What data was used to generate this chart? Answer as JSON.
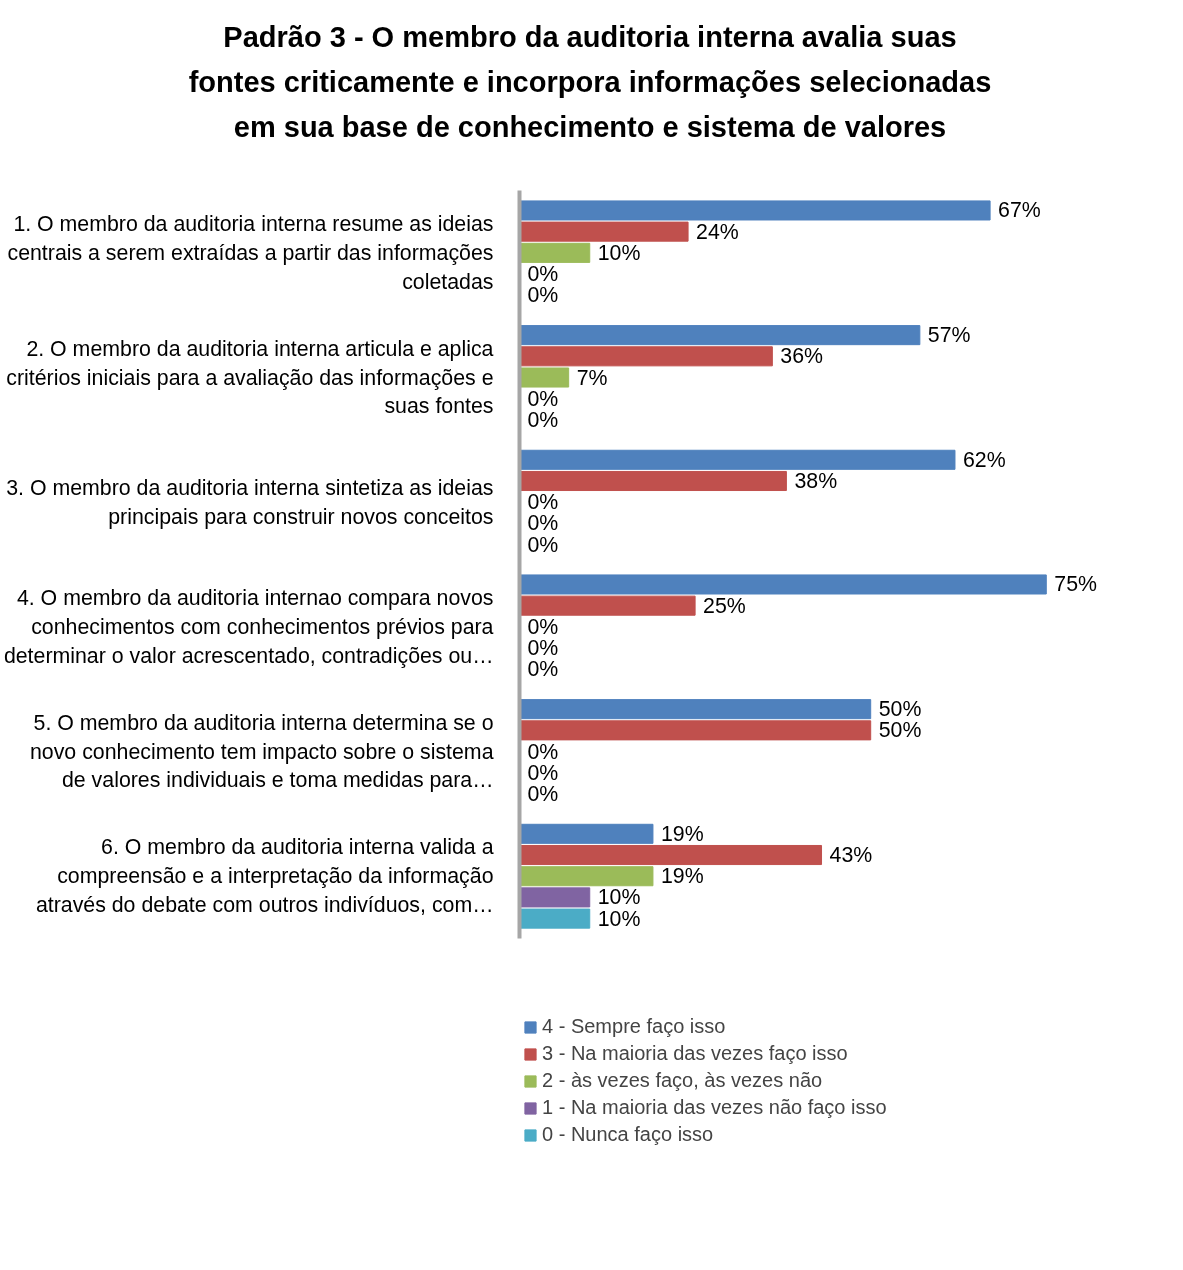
{
  "chart_data": {
    "type": "bar",
    "orientation": "horizontal",
    "title": "Padrão 3 - O membro da auditoria interna avalia suas\nfontes criticamente e incorpora informações selecionadas\nem sua base de conhecimento e sistema de valores",
    "categories": [
      "1. O membro da auditoria interna resume as ideias\ncentrais a serem extraídas a partir das informações\ncoletadas",
      "2. O membro da auditoria interna articula e aplica\ncritérios iniciais para a avaliação das informações e\nsuas fontes",
      "3. O membro da auditoria interna sintetiza as ideias\nprincipais para construir novos conceitos",
      "4. O membro da auditoria internao compara novos\nconhecimentos com conhecimentos prévios para\ndeterminar o valor acrescentado, contradições ou…",
      "5. O membro da auditoria interna determina se o\nnovo conhecimento tem impacto sobre o sistema\nde valores individuais e toma medidas para…",
      "6. O membro da auditoria interna valida a\ncompreensão e a interpretação da informação\natravés do debate com outros indivíduos, com…"
    ],
    "series": [
      {
        "name": "4 - Sempre faço isso",
        "color": "#4f81bd",
        "values": [
          67,
          57,
          62,
          75,
          50,
          19
        ],
        "value_labels": [
          "67%",
          "57%",
          "62%",
          "75%",
          "50%",
          "19%"
        ]
      },
      {
        "name": "3 - Na maioria das vezes faço isso",
        "color": "#c0504d",
        "values": [
          24,
          36,
          38,
          25,
          50,
          43
        ],
        "value_labels": [
          "24%",
          "36%",
          "38%",
          "25%",
          "50%",
          "43%"
        ]
      },
      {
        "name": "2 - às vezes faço, às vezes não",
        "color": "#9bbb59",
        "values": [
          10,
          7,
          0,
          0,
          0,
          19
        ],
        "value_labels": [
          "10%",
          "7%",
          "0%",
          "0%",
          "0%",
          "19%"
        ]
      },
      {
        "name": "1 - Na maioria das vezes não faço isso",
        "color": "#8064a2",
        "values": [
          0,
          0,
          0,
          0,
          0,
          10
        ],
        "value_labels": [
          "0%",
          "0%",
          "0%",
          "0%",
          "0%",
          "10%"
        ]
      },
      {
        "name": "0 - Nunca faço isso",
        "color": "#4bacc6",
        "values": [
          0,
          0,
          0,
          0,
          0,
          10
        ],
        "value_labels": [
          "0%",
          "0%",
          "0%",
          "0%",
          "0%",
          "10%"
        ]
      }
    ],
    "tick_labels": "y",
    "legend": "bottom"
  }
}
